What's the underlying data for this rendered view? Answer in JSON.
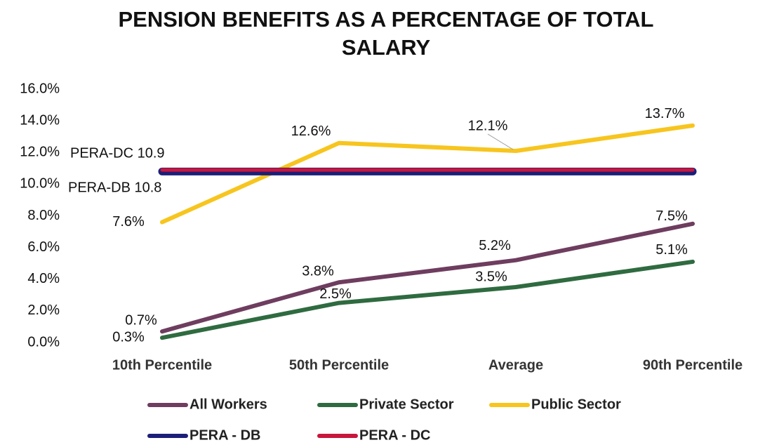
{
  "chart_data": {
    "type": "line",
    "title": "PENSION BENEFITS AS A PERCENTAGE OF TOTAL SALARY",
    "categories": [
      "10th Percentile",
      "50th Percentile",
      "Average",
      "90th Percentile"
    ],
    "series": [
      {
        "name": "All Workers",
        "color": "#6e3d5f",
        "values": [
          0.7,
          3.8,
          5.2,
          7.5
        ],
        "value_labels": [
          "0.7%",
          "3.8%",
          "5.2%",
          "7.5%"
        ]
      },
      {
        "name": "Private Sector",
        "color": "#2f6b40",
        "values": [
          0.3,
          2.5,
          3.5,
          5.1
        ],
        "value_labels": [
          "0.3%",
          "2.5%",
          "3.5%",
          "5.1%"
        ]
      },
      {
        "name": "Public Sector",
        "color": "#f7c51e",
        "values": [
          7.6,
          12.6,
          12.1,
          13.7
        ],
        "value_labels": [
          "7.6%",
          "12.6%",
          "12.1%",
          "13.7%"
        ]
      },
      {
        "name": "PERA - DB",
        "color": "#1c1f78",
        "values": [
          10.8,
          10.8,
          10.8,
          10.8
        ]
      },
      {
        "name": "PERA - DC",
        "color": "#c8163c",
        "values": [
          10.9,
          10.9,
          10.9,
          10.9
        ]
      }
    ],
    "annotations": [
      "PERA-DC 10.9",
      "PERA-DB 10.8"
    ],
    "ylim": [
      0,
      16
    ],
    "yticks": [
      {
        "value": 0,
        "label": "0.0%"
      },
      {
        "value": 2,
        "label": "2.0%"
      },
      {
        "value": 4,
        "label": "4.0%"
      },
      {
        "value": 6,
        "label": "6.0%"
      },
      {
        "value": 8,
        "label": "8.0%"
      },
      {
        "value": 10,
        "label": "10.0%"
      },
      {
        "value": 12,
        "label": "12.0%"
      },
      {
        "value": 14,
        "label": "14.0%"
      },
      {
        "value": 16,
        "label": "16.0%"
      }
    ],
    "grid": false,
    "legend": "bottom"
  }
}
